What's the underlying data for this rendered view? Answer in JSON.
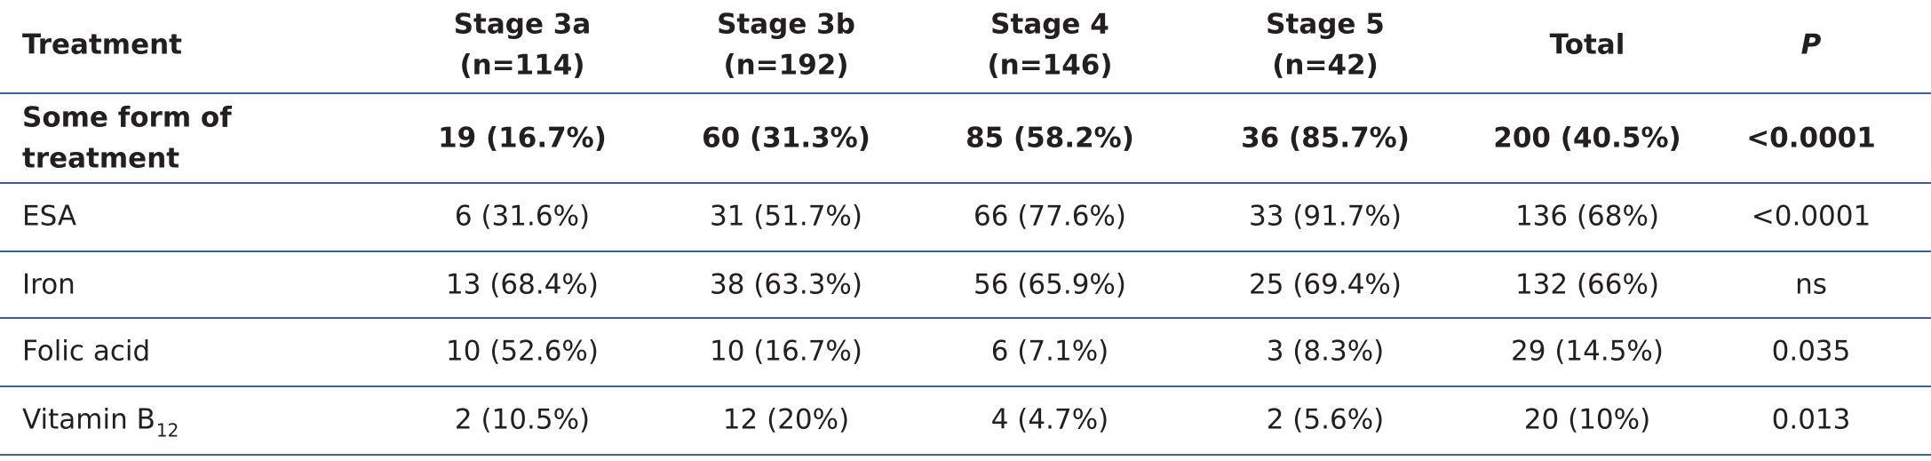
{
  "table": {
    "header": [
      [
        "Treatment"
      ],
      [
        "Stage 3a",
        "(n=114)"
      ],
      [
        "Stage 3b",
        "(n=192)"
      ],
      [
        "Stage 4",
        "(n=146)"
      ],
      [
        "Stage 5",
        "(n=42)"
      ],
      [
        "Total"
      ],
      [
        "P"
      ]
    ],
    "rows": [
      {
        "label": [
          "Some form of",
          "treatment"
        ],
        "cells": [
          "19 (16.7%)",
          "60 (31.3%)",
          "85 (58.2%)",
          "36 (85.7%)",
          "200 (40.5%)",
          "<0.0001"
        ]
      },
      {
        "label": [
          "ESA"
        ],
        "cells": [
          "6 (31.6%)",
          "31 (51.7%)",
          "66 (77.6%)",
          "33 (91.7%)",
          "136 (68%)",
          "<0.0001"
        ]
      },
      {
        "label": [
          "Iron"
        ],
        "cells": [
          "13 (68.4%)",
          "38 (63.3%)",
          "56 (65.9%)",
          "25 (69.4%)",
          "132 (66%)",
          "ns"
        ]
      },
      {
        "label": [
          "Folic acid"
        ],
        "cells": [
          "10 (52.6%)",
          "10 (16.7%)",
          "6 (7.1%)",
          "3 (8.3%)",
          "29 (14.5%)",
          "0.035"
        ]
      },
      {
        "label": [
          "Vitamin B"
        ],
        "label_sub": "12",
        "cells": [
          "2 (10.5%)",
          "12 (20%)",
          "4 (4.7%)",
          "2 (5.6%)",
          "20 (10%)",
          "0.013"
        ]
      }
    ]
  }
}
